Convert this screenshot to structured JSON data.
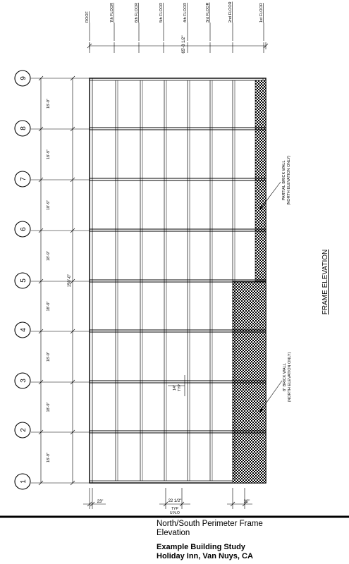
{
  "floors": [
    "ROOF",
    "7th FLOOR",
    "6th FLOOR",
    "5th FLOOR",
    "4th FLOOR",
    "3rd FLOOR",
    "2nd FLOOR",
    "1st FLOOR"
  ],
  "gridlines": [
    "1",
    "2",
    "3",
    "4",
    "5",
    "6",
    "7",
    "8",
    "9"
  ],
  "bay_dimension": "18'-9\"",
  "total_length": "150'-0\"",
  "total_height": "65'-8 1/2\"",
  "notes": {
    "partial_brick_wall": [
      "PARTIAL BRICK WALL",
      "(NORTH ELEVATION ONLY)"
    ],
    "brick_wall": [
      "8\" BRICK WALL",
      "(NORTH ELEVATION ONLY)"
    ],
    "column_spacing": [
      "14\"",
      "TYP"
    ]
  },
  "bottom_dims": [
    {
      "value": "23\""
    },
    {
      "value": "22 1/2\"",
      "sub": [
        "TYP",
        "U.N.O"
      ]
    },
    {
      "value": "30\""
    }
  ],
  "view_title": "FRAME ELEVATION",
  "caption": {
    "subtitle": [
      "North/South Perimeter Frame",
      "Elevation"
    ],
    "project": [
      "Example Building Study",
      "Holiday Inn, Van Nuys, CA"
    ]
  },
  "colors": {
    "ink": "#000000",
    "paper": "#ffffff"
  }
}
